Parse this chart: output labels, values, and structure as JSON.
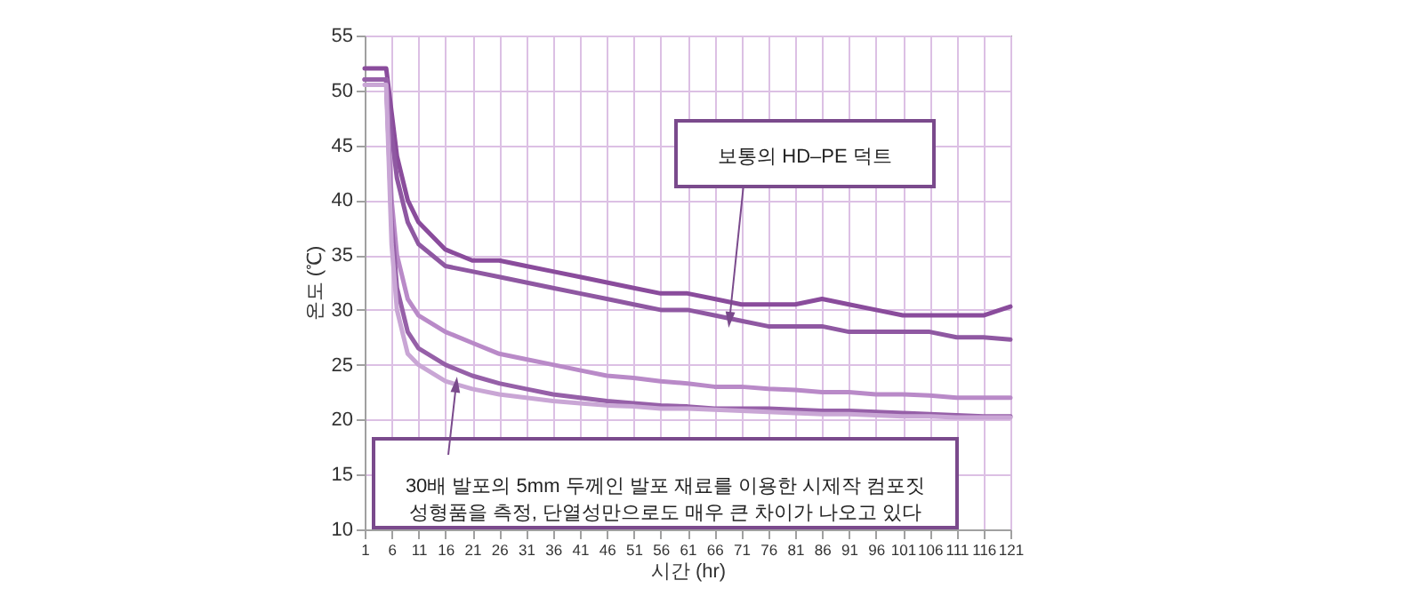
{
  "chart_data": {
    "type": "line",
    "xlabel": "시간 (hr)",
    "ylabel": "온도 (℃)",
    "xlim": [
      1,
      121
    ],
    "xticks": [
      1,
      6,
      11,
      16,
      21,
      26,
      31,
      36,
      41,
      46,
      51,
      56,
      61,
      66,
      71,
      76,
      81,
      86,
      91,
      96,
      101,
      106,
      111,
      116,
      121
    ],
    "ylim": [
      10,
      55
    ],
    "yticks": [
      10,
      15,
      20,
      25,
      30,
      35,
      40,
      45,
      50,
      55
    ],
    "grid": true,
    "marker": "none",
    "line_style": "solid",
    "x": [
      1,
      3,
      5,
      6,
      7,
      9,
      11,
      16,
      21,
      26,
      31,
      36,
      41,
      46,
      51,
      56,
      61,
      66,
      71,
      76,
      81,
      86,
      91,
      96,
      101,
      106,
      111,
      116,
      121
    ],
    "series": [
      {
        "color": "#8a4c9c",
        "values": [
          52,
          52,
          52,
          48,
          44,
          40,
          38,
          35.5,
          34.5,
          34.5,
          34,
          33.5,
          33,
          32.5,
          32,
          31.5,
          31.5,
          31,
          30.5,
          30.5,
          30.5,
          31,
          30.5,
          30,
          29.5,
          29.5,
          29.5,
          29.5,
          30.3
        ]
      },
      {
        "color": "#8f58a2",
        "values": [
          51,
          51,
          51,
          46,
          42,
          38,
          36,
          34,
          33.5,
          33,
          32.5,
          32,
          31.5,
          31,
          30.5,
          30,
          30,
          29.5,
          29,
          28.5,
          28.5,
          28.5,
          28,
          28,
          28,
          28,
          27.5,
          27.5,
          27.3
        ]
      },
      {
        "color": "#b98ac8",
        "values": [
          51,
          51,
          51,
          40,
          35,
          31,
          29.5,
          28,
          27,
          26,
          25.5,
          25,
          24.5,
          24,
          23.8,
          23.5,
          23.3,
          23,
          23,
          22.8,
          22.7,
          22.5,
          22.5,
          22.3,
          22.3,
          22.2,
          22,
          22,
          22
        ]
      },
      {
        "color": "#9660a8",
        "values": [
          51,
          51,
          51,
          38,
          32,
          28,
          26.5,
          25,
          24,
          23.3,
          22.8,
          22.3,
          22,
          21.7,
          21.5,
          21.3,
          21.2,
          21,
          21,
          21,
          20.9,
          20.8,
          20.8,
          20.7,
          20.6,
          20.5,
          20.4,
          20.3,
          20.3
        ]
      },
      {
        "color": "#c9a6d5",
        "values": [
          50.5,
          50.5,
          50.5,
          36,
          30,
          26,
          25,
          23.5,
          22.8,
          22.3,
          22,
          21.7,
          21.5,
          21.3,
          21.2,
          21,
          21,
          20.9,
          20.8,
          20.7,
          20.6,
          20.5,
          20.5,
          20.4,
          20.3,
          20.3,
          20.2,
          20.2,
          20.2
        ]
      }
    ],
    "annotations": [
      {
        "text": "보통의 HD–PE 덕트",
        "x": 68.8,
        "y": 29.1
      },
      {
        "text": "30배 발포의 5mm 두께인 발포 재료를 이용한 시제작 컴포짓\n성형품을 측정, 단열성만으로도 매우 큰 차이가 나오고 있다",
        "x": 18,
        "y": 23.2
      }
    ]
  }
}
